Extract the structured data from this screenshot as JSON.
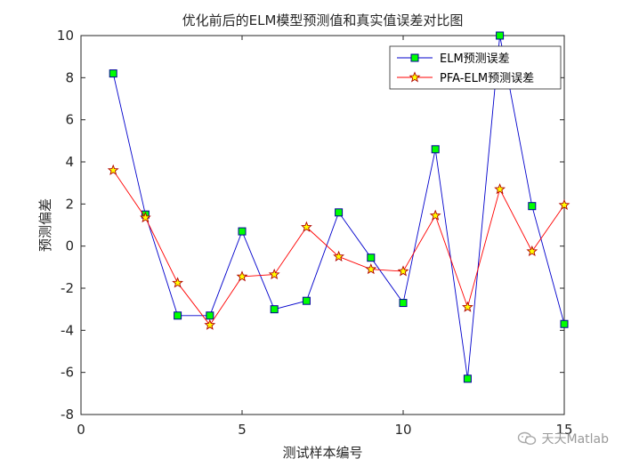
{
  "chart_data": {
    "type": "line",
    "title": "优化前后的ELM模型预测值和真实值误差对比图",
    "xlabel": "测试样本编号",
    "ylabel": "预测偏差",
    "xlim": [
      0,
      15
    ],
    "ylim": [
      -8,
      10
    ],
    "xticks": [
      0,
      5,
      10,
      15
    ],
    "yticks": [
      -8,
      -6,
      -4,
      -2,
      0,
      2,
      4,
      6,
      8,
      10
    ],
    "x": [
      1,
      2,
      3,
      4,
      5,
      6,
      7,
      8,
      9,
      10,
      11,
      12,
      13,
      14,
      15
    ],
    "series": [
      {
        "name": "ELM预测误差",
        "values": [
          8.2,
          1.5,
          -3.3,
          -3.3,
          0.7,
          -3.0,
          -2.6,
          1.6,
          -0.55,
          -2.7,
          4.6,
          -6.3,
          10.0,
          1.9,
          -3.7
        ],
        "line_color": "#0000cc",
        "marker": "square",
        "marker_fill": "#00ff00",
        "marker_edge": "#000099"
      },
      {
        "name": "PFA-ELM预测误差",
        "values": [
          3.6,
          1.35,
          -1.75,
          -3.75,
          -1.45,
          -1.35,
          0.9,
          -0.5,
          -1.1,
          -1.2,
          1.45,
          -2.9,
          2.7,
          -0.25,
          1.95
        ],
        "line_color": "#ff0000",
        "marker": "star",
        "marker_fill": "#ffff00",
        "marker_edge": "#b00000"
      }
    ],
    "legend_position": "top-right",
    "grid": false,
    "box": true,
    "axis_color": "#262626"
  },
  "watermark": {
    "text": "天天Matlab",
    "icon": "wechat-icon"
  }
}
